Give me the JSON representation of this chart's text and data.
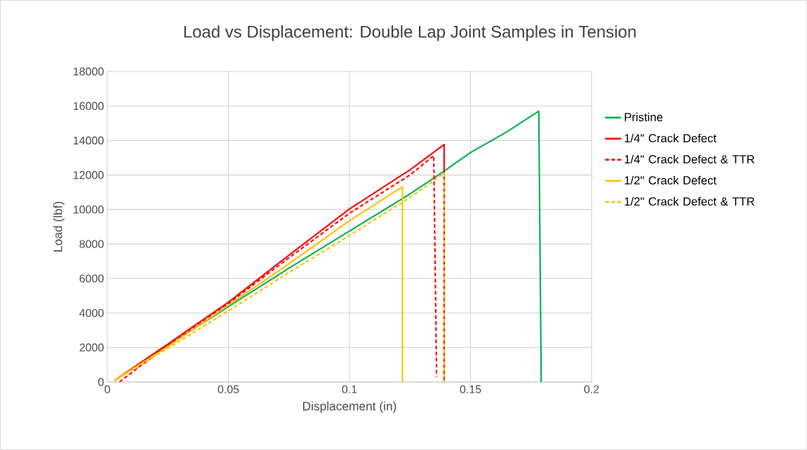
{
  "chart_data": {
    "type": "line",
    "title": "Load vs Displacement: Double Lap Joint Samples in Tension",
    "xlabel": "Displacement (in)",
    "ylabel": "Load (lbf)",
    "xlim": [
      0,
      0.2
    ],
    "xticks": [
      0,
      0.05,
      0.1,
      0.15,
      0.2
    ],
    "ylim": [
      0,
      18000
    ],
    "yticks": [
      0,
      2000,
      4000,
      6000,
      8000,
      10000,
      12000,
      14000,
      16000,
      18000
    ],
    "grid": true,
    "legend": "right",
    "marker": "none",
    "series": [
      {
        "name": "Pristine",
        "color": "#00b050",
        "line_style": "solid",
        "x": [
          0.003,
          0.025,
          0.05,
          0.075,
          0.1,
          0.125,
          0.139,
          0.15,
          0.165,
          0.1782,
          0.1792
        ],
        "values": [
          100,
          2100,
          4370,
          6600,
          8750,
          10900,
          12210,
          13300,
          14500,
          15700,
          0
        ]
      },
      {
        "name": "1/4\" Crack Defect",
        "color": "#ff0000",
        "line_style": "solid",
        "x": [
          0.003,
          0.025,
          0.05,
          0.075,
          0.1,
          0.125,
          0.1391,
          0.1391
        ],
        "values": [
          100,
          2200,
          4630,
          7350,
          10030,
          12300,
          13770,
          0
        ]
      },
      {
        "name": "1/4\" Crack Defect & TTR",
        "color": "#ff0000",
        "line_style": "dashed",
        "x": [
          0.005,
          0.025,
          0.05,
          0.075,
          0.1,
          0.125,
          0.1348,
          0.136
        ],
        "values": [
          0,
          2150,
          4550,
          7200,
          9780,
          12000,
          13120,
          300
        ]
      },
      {
        "name": "1/2\" Crack Defect",
        "color": "#ffc000",
        "line_style": "solid",
        "x": [
          0.003,
          0.025,
          0.05,
          0.075,
          0.1,
          0.1219,
          0.1219
        ],
        "values": [
          100,
          2050,
          4450,
          6850,
          9350,
          11320,
          0
        ]
      },
      {
        "name": "1/2\" Crack Defect & TTR",
        "color": "#ffc000",
        "line_style": "dashed",
        "x": [
          0.003,
          0.025,
          0.05,
          0.075,
          0.1,
          0.125,
          0.1355,
          0.1391,
          0.1391
        ],
        "values": [
          100,
          1950,
          4120,
          6350,
          8490,
          10700,
          11750,
          12100,
          0
        ]
      }
    ]
  }
}
